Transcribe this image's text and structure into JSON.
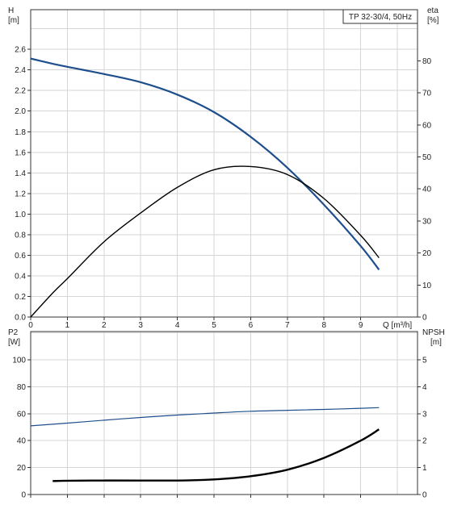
{
  "chart_data": [
    {
      "type": "line",
      "title": "TP 32-30/4, 50Hz",
      "xlabel": "Q [m³/h]",
      "x_range": [
        0,
        10
      ],
      "x_ticks": [
        "0",
        "1",
        "2",
        "3",
        "4",
        "5",
        "6",
        "7",
        "8",
        "9"
      ],
      "left_axis": {
        "label_line1": "H",
        "label_line2": "[m]",
        "range": [
          0,
          2.8
        ],
        "ticks": [
          "0.0",
          "0.2",
          "0.4",
          "0.6",
          "0.8",
          "1.0",
          "1.2",
          "1.4",
          "1.6",
          "1.8",
          "2.0",
          "2.2",
          "2.4",
          "2.6"
        ]
      },
      "right_axis": {
        "label_line1": "eta",
        "label_line2": "[%]",
        "range": [
          0,
          90
        ],
        "ticks": [
          "0",
          "10",
          "20",
          "30",
          "40",
          "50",
          "60",
          "70",
          "80"
        ]
      },
      "grid": true,
      "legend": "none",
      "series": [
        {
          "axis": "left",
          "color": "#1f4e8c",
          "x": [
            0,
            0.6,
            1,
            2,
            3,
            4,
            5,
            6,
            7,
            8,
            9,
            9.5
          ],
          "y": [
            2.51,
            2.46,
            2.43,
            2.36,
            2.28,
            2.16,
            1.99,
            1.75,
            1.45,
            1.09,
            0.69,
            0.46
          ]
        },
        {
          "axis": "right",
          "color": "#000000",
          "x": [
            0,
            0.6,
            1,
            2,
            3,
            4,
            5,
            6,
            7,
            8,
            9,
            9.5
          ],
          "y": [
            0,
            7.5,
            12,
            23.5,
            32.5,
            40.5,
            46,
            47,
            44.5,
            37,
            25.5,
            18.5
          ]
        }
      ]
    },
    {
      "type": "line",
      "title": "",
      "x_range": [
        0,
        10
      ],
      "left_axis": {
        "label_line1": "P2",
        "label_line2": "[W]",
        "range": [
          0,
          120
        ],
        "ticks": [
          "0",
          "20",
          "40",
          "60",
          "80",
          "100"
        ]
      },
      "right_axis": {
        "label_line1": "NPSH",
        "label_line2": "[m]",
        "range": [
          0,
          6
        ],
        "ticks": [
          "0",
          "1",
          "2",
          "3",
          "4",
          "5"
        ]
      },
      "grid": true,
      "legend": "none",
      "series": [
        {
          "axis": "left",
          "color": "#1f4e8c",
          "x": [
            0,
            1,
            2,
            3,
            4,
            5,
            6,
            7,
            8,
            9,
            9.5
          ],
          "y": [
            51,
            53,
            55.2,
            57.2,
            59,
            60.5,
            61.8,
            62.5,
            63.2,
            64,
            64.5
          ]
        },
        {
          "axis": "right",
          "color": "#000000",
          "x": [
            0.6,
            1,
            2,
            3,
            4,
            5,
            6,
            7,
            8,
            9,
            9.5
          ],
          "y": [
            0.5,
            0.51,
            0.52,
            0.52,
            0.52,
            0.56,
            0.68,
            0.92,
            1.36,
            2,
            2.42
          ]
        }
      ]
    }
  ]
}
